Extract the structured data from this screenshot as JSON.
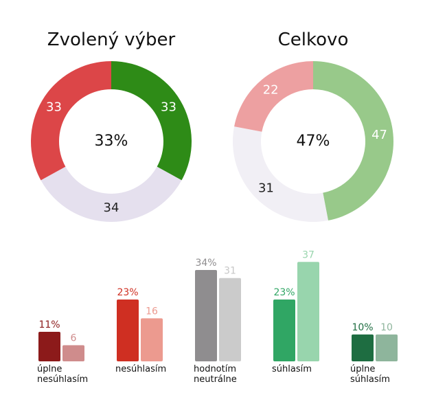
{
  "chart_data": [
    {
      "type": "pie",
      "title": "Zvolený výber",
      "center_label": "33%",
      "slices": [
        {
          "label": "33",
          "value": 33,
          "color": "#2e8b17"
        },
        {
          "label": "34",
          "value": 34,
          "color": "#e5e0ee"
        },
        {
          "label": "33",
          "value": 33,
          "color": "#dc4648"
        }
      ],
      "label_colors": [
        "#ffffff",
        "#222222",
        "#ffffff"
      ]
    },
    {
      "type": "pie",
      "title": "Celkovo",
      "center_label": "47%",
      "slices": [
        {
          "label": "47",
          "value": 47,
          "color": "#98c98a"
        },
        {
          "label": "31",
          "value": 31,
          "color": "#f1eff5"
        },
        {
          "label": "22",
          "value": 22,
          "color": "#eda0a1"
        }
      ],
      "label_colors": [
        "#ffffff",
        "#222222",
        "#ffffff"
      ]
    },
    {
      "type": "bar",
      "categories": [
        [
          "úplne",
          "nesúhlasím"
        ],
        [
          "nesúhlasím"
        ],
        [
          "hodnotím",
          "neutrálne"
        ],
        [
          "súhlasím"
        ],
        [
          "úplne",
          "súhlasím"
        ]
      ],
      "series": [
        {
          "values": [
            11,
            23,
            34,
            23,
            10
          ],
          "labels": [
            "11%",
            "23%",
            "34%",
            "23%",
            "10%"
          ],
          "colors": [
            "#8c1a1a",
            "#cf2f22",
            "#8f8d8f",
            "#30a664",
            "#1e6d41"
          ],
          "label_colors": [
            "#8c1a1a",
            "#cf2f22",
            "#8f8d8f",
            "#30a664",
            "#1e6d41"
          ]
        },
        {
          "values": [
            6,
            16,
            31,
            37,
            10
          ],
          "labels": [
            "6",
            "16",
            "31",
            "37",
            "10"
          ],
          "colors": [
            "#cf8c8c",
            "#ec9a8f",
            "#cbcbcb",
            "#98d5ad",
            "#8eb59c"
          ],
          "label_colors": [
            "#cf8c8c",
            "#ec9a8f",
            "#c7c7c7",
            "#98d5ad",
            "#8eb59c"
          ]
        }
      ],
      "ylim": [
        0,
        40
      ]
    }
  ]
}
